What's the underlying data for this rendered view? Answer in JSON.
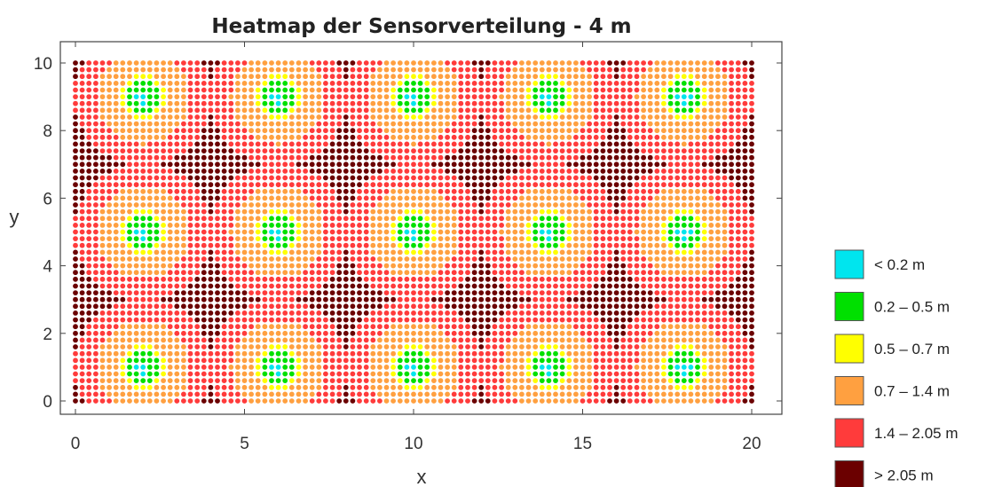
{
  "chart_data": {
    "type": "heatmap",
    "title": "Heatmap der Sensorverteilung - 4 m",
    "xlabel": "x",
    "ylabel": "y",
    "xlim": [
      0,
      20
    ],
    "ylim": [
      0,
      10
    ],
    "xticks": [
      "0",
      "5",
      "10",
      "15",
      "20"
    ],
    "yticks": [
      "0",
      "2",
      "4",
      "6",
      "8",
      "10"
    ],
    "grid_step": 0.2,
    "sensors": [
      {
        "x": 2,
        "y": 9
      },
      {
        "x": 6,
        "y": 9
      },
      {
        "x": 10,
        "y": 9
      },
      {
        "x": 14,
        "y": 9
      },
      {
        "x": 18,
        "y": 9
      },
      {
        "x": 2,
        "y": 5
      },
      {
        "x": 6,
        "y": 5
      },
      {
        "x": 10,
        "y": 5
      },
      {
        "x": 14,
        "y": 5
      },
      {
        "x": 18,
        "y": 5
      },
      {
        "x": 2,
        "y": 1
      },
      {
        "x": 6,
        "y": 1
      },
      {
        "x": 10,
        "y": 1
      },
      {
        "x": 14,
        "y": 1
      },
      {
        "x": 18,
        "y": 1
      }
    ],
    "bins": [
      {
        "label": "< 0.2 m",
        "max": 0.2,
        "color": "#00e5ee"
      },
      {
        "label": "0.2 – 0.5 m",
        "max": 0.5,
        "color": "#00e000"
      },
      {
        "label": "0.5 – 0.7 m",
        "max": 0.7,
        "color": "#ffff00"
      },
      {
        "label": "0.7 – 1.4 m",
        "max": 1.4,
        "color": "#ffa040"
      },
      {
        "label": "1.4 – 2.05 m",
        "max": 2.05,
        "color": "#ff3b3b"
      },
      {
        "label": "> 2.05 m",
        "max": 99,
        "color": "#6b0000"
      }
    ],
    "legend_position": "right"
  }
}
